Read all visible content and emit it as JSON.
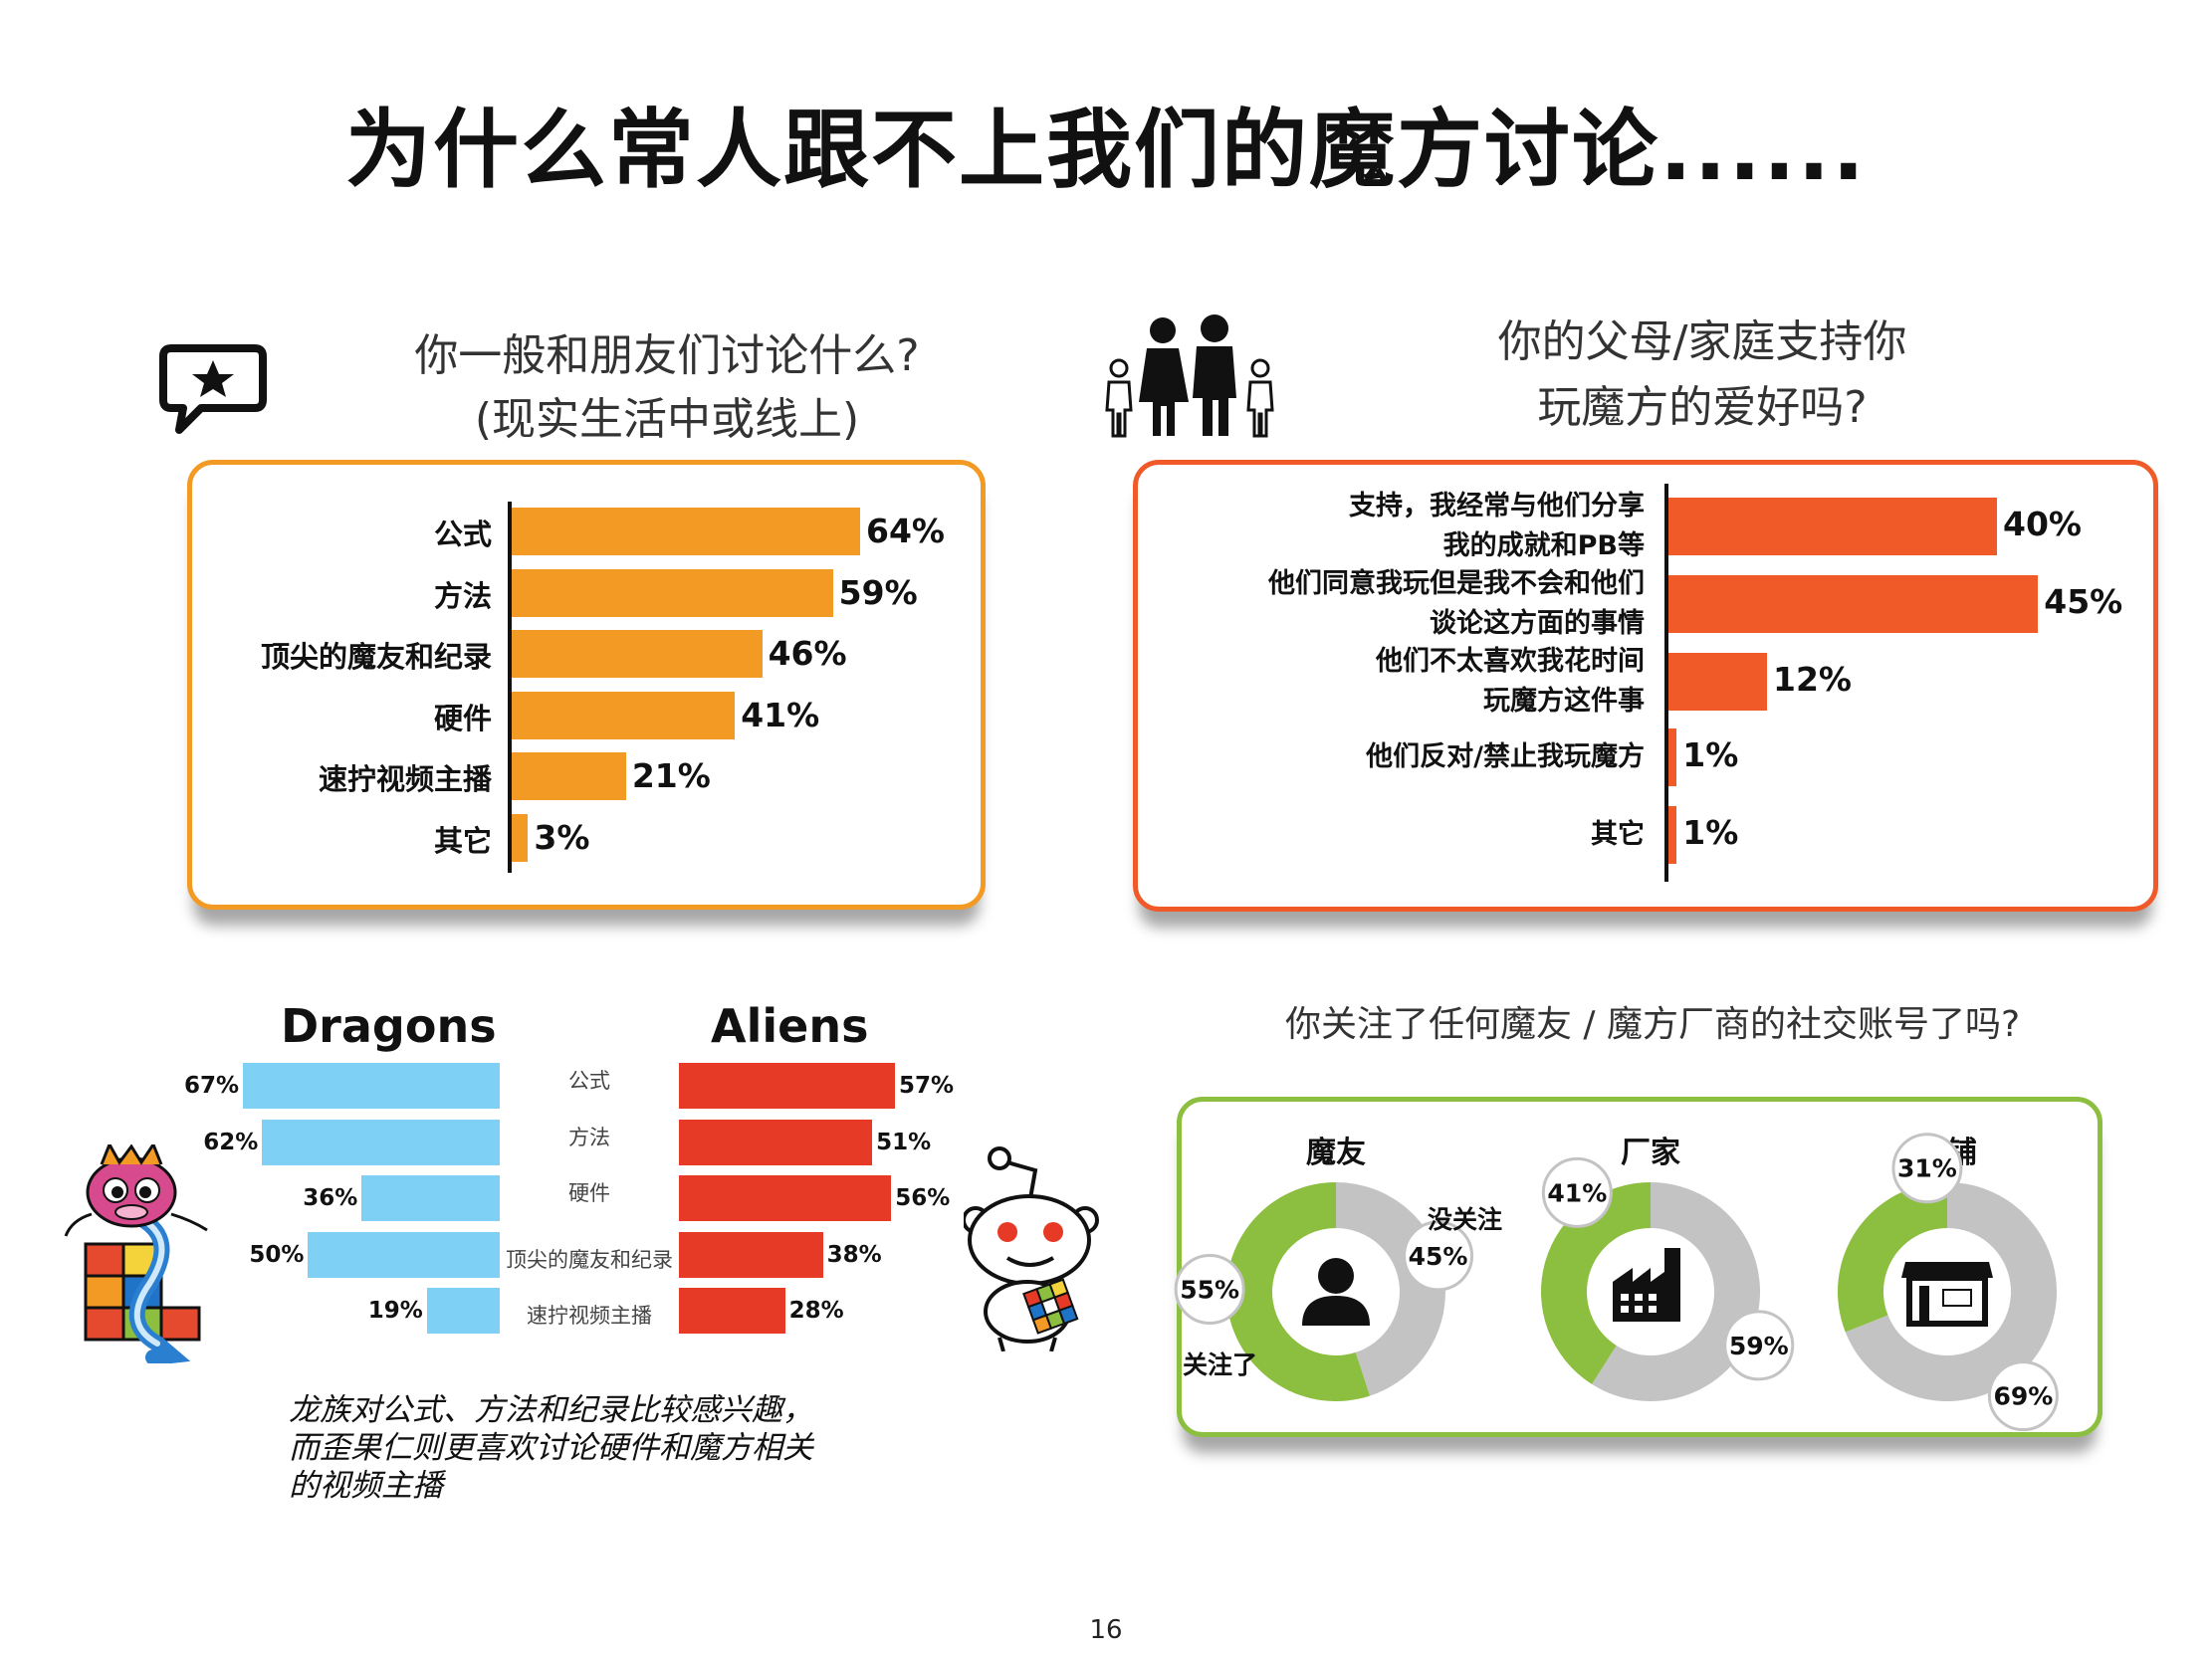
{
  "page": {
    "title": "为什么常人跟不上我们的魔方讨论......",
    "page_number": "16"
  },
  "icons": {
    "discussion": "chat-bubble-star-icon",
    "family": "family-icon",
    "dragon": "dragon-mascot-icon",
    "alien": "reddit-alien-mascot-icon",
    "person": "person-icon",
    "factory": "factory-icon",
    "store": "store-icon"
  },
  "chart_discuss": {
    "question_line1": "你一般和朋友们讨论什么?",
    "question_line2": "(现实生活中或线上)"
  },
  "chart_family": {
    "question_line1": "你的父母/家庭支持你",
    "question_line2": "玩魔方的爱好吗?"
  },
  "chart_compare": {
    "left_title": "Dragons",
    "right_title": "Aliens",
    "note_line1": "龙族对公式、方法和纪录比较感兴趣，",
    "note_line2": "而歪果仁则更喜欢讨论硬件和魔方相关",
    "note_line3": "的视频主播"
  },
  "chart_follow": {
    "question": "你关注了任何魔友 / 魔方厂商的社交账号了吗?",
    "not_followed_label": "没关注",
    "followed_label": "关注了"
  },
  "colors": {
    "orange": "#f39a24",
    "red_orange": "#f05a28",
    "dragon_blue": "#7fd0f5",
    "alien_red": "#e63a26",
    "green": "#8cbe3f",
    "gray": "#c3c3c3"
  },
  "chart_data": [
    {
      "type": "bar",
      "orientation": "horizontal",
      "title": "你一般和朋友们讨论什么? (现实生活中或线上)",
      "categories": [
        "公式",
        "方法",
        "顶尖的魔友和纪录",
        "硬件",
        "速拧视频主播",
        "其它"
      ],
      "values": [
        64,
        59,
        46,
        41,
        21,
        3
      ],
      "value_labels": [
        "64%",
        "59%",
        "46%",
        "41%",
        "21%",
        "3%"
      ],
      "unit": "%",
      "xlim": [
        0,
        100
      ]
    },
    {
      "type": "bar",
      "orientation": "horizontal",
      "title": "你的父母/家庭支持你玩魔方的爱好吗?",
      "categories": [
        [
          "支持，我经常与他们分享",
          "我的成就和PB等"
        ],
        [
          "他们同意我玩但是我不会和他们",
          "谈论这方面的事情"
        ],
        [
          "他们不太喜欢我花时间",
          "玩魔方这件事"
        ],
        [
          "他们反对/禁止我玩魔方"
        ],
        [
          "其它"
        ]
      ],
      "values": [
        40,
        45,
        12,
        1,
        1
      ],
      "value_labels": [
        "40%",
        "45%",
        "12%",
        "1%",
        "1%"
      ],
      "unit": "%",
      "xlim": [
        0,
        100
      ]
    },
    {
      "type": "bar",
      "orientation": "horizontal",
      "categories": [
        "公式",
        "方法",
        "硬件",
        "顶尖的魔友和纪录",
        "速拧视频主播"
      ],
      "series": [
        {
          "name": "Dragons",
          "values": [
            67,
            62,
            36,
            50,
            19
          ],
          "value_labels": [
            "67%",
            "62%",
            "36%",
            "50%",
            "19%"
          ]
        },
        {
          "name": "Aliens",
          "values": [
            57,
            51,
            56,
            38,
            28
          ],
          "value_labels": [
            "57%",
            "51%",
            "56%",
            "38%",
            "28%"
          ]
        }
      ],
      "unit": "%",
      "xlim": [
        0,
        100
      ]
    },
    {
      "type": "pie",
      "variant": "donut",
      "title": "你关注了任何魔友 / 魔方厂商的社交账号了吗?",
      "charts": [
        {
          "name": "魔友",
          "followed": 55,
          "not_followed": 45,
          "followed_label": "55%",
          "not_followed_label": "45%"
        },
        {
          "name": "厂家",
          "followed": 41,
          "not_followed": 59,
          "followed_label": "41%",
          "not_followed_label": "59%"
        },
        {
          "name": "店铺",
          "followed": 31,
          "not_followed": 69,
          "followed_label": "31%",
          "not_followed_label": "69%"
        }
      ]
    }
  ]
}
